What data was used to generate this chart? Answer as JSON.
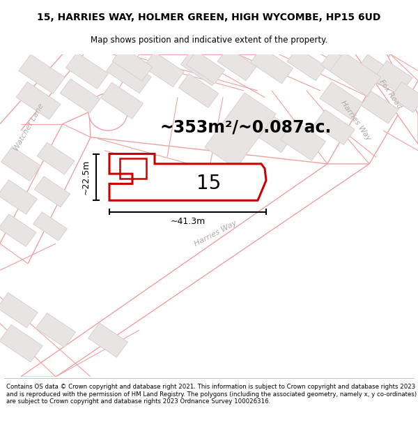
{
  "title": "15, HARRIES WAY, HOLMER GREEN, HIGH WYCOMBE, HP15 6UD",
  "subtitle": "Map shows position and indicative extent of the property.",
  "area_text": "~353m²/~0.087ac.",
  "dim_width": "~41.3m",
  "dim_height": "~22.5m",
  "plot_number": "15",
  "footer": "Contains OS data © Crown copyright and database right 2021. This information is subject to Crown copyright and database rights 2023 and is reproduced with the permission of HM Land Registry. The polygons (including the associated geometry, namely x, y co-ordinates) are subject to Crown copyright and database rights 2023 Ordnance Survey 100026316.",
  "bg_color": "#ffffff",
  "road_fill": "#ffffff",
  "road_line": "#f0a0a0",
  "block_fill": "#e8e4e4",
  "block_line": "#d8d0d0",
  "plot_line": "#cc0000",
  "plot_fill": "#ffffff",
  "inner_line": "#cc0000",
  "label_color": "#b0a8a8",
  "watchet_color": "#b0b0b0",
  "dim_color": "#000000",
  "title_fs": 10,
  "subtitle_fs": 8.5,
  "area_fs": 17,
  "plot_num_fs": 20,
  "dim_fs": 9,
  "road_label_fs": 8,
  "footer_fs": 6.2
}
